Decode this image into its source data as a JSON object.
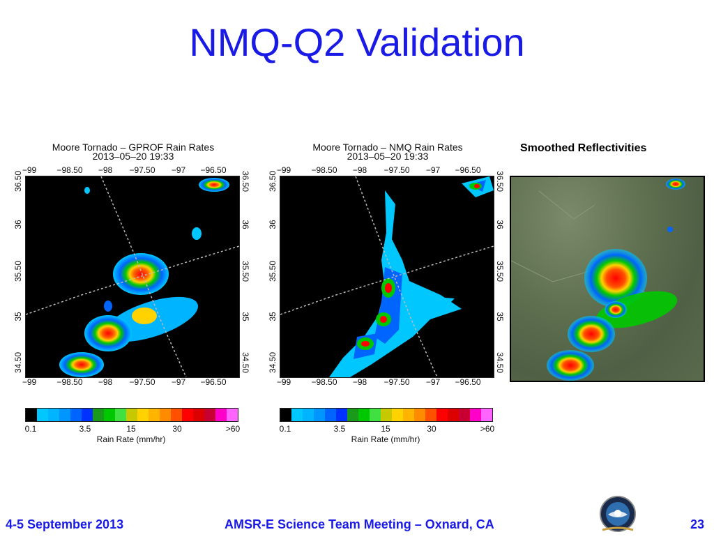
{
  "slide": {
    "title": "NMQ-Q2 Validation"
  },
  "panels": [
    {
      "id": "gprof",
      "title_line1": "Moore Tornado – GPROF Rain Rates",
      "title_line2": "2013–05–20 19:33"
    },
    {
      "id": "nmq",
      "title_line1": "Moore Tornado – NMQ Rain Rates",
      "title_line2": "2013–05–20 19:33"
    }
  ],
  "axes": {
    "lon_ticks": [
      "−99",
      "−98.50",
      "−98",
      "−97.50",
      "−97",
      "−96.50"
    ],
    "lat_ticks": [
      "34.50",
      "35",
      "35.50",
      "36",
      "36.50"
    ]
  },
  "colorbar": {
    "labels": [
      "0.1",
      "3.5",
      "15",
      "30",
      ">60"
    ],
    "title": "Rain Rate (mm/hr)",
    "colors": [
      "#000000",
      "#00c8ff",
      "#00b4ff",
      "#0096ff",
      "#0064ff",
      "#0032ff",
      "#1a9a1a",
      "#00c800",
      "#40e040",
      "#c8c800",
      "#ffd200",
      "#ffb400",
      "#ff8c00",
      "#ff5000",
      "#ff0000",
      "#dc0000",
      "#c80032",
      "#ff00c8",
      "#ff64ff"
    ]
  },
  "reflectivity": {
    "label": "Smoothed  Reflectivities"
  },
  "footer": {
    "date": "4-5 September 2013",
    "meeting": "AMSR-E Science Team Meeting – Oxnard, CA",
    "page": "23"
  }
}
